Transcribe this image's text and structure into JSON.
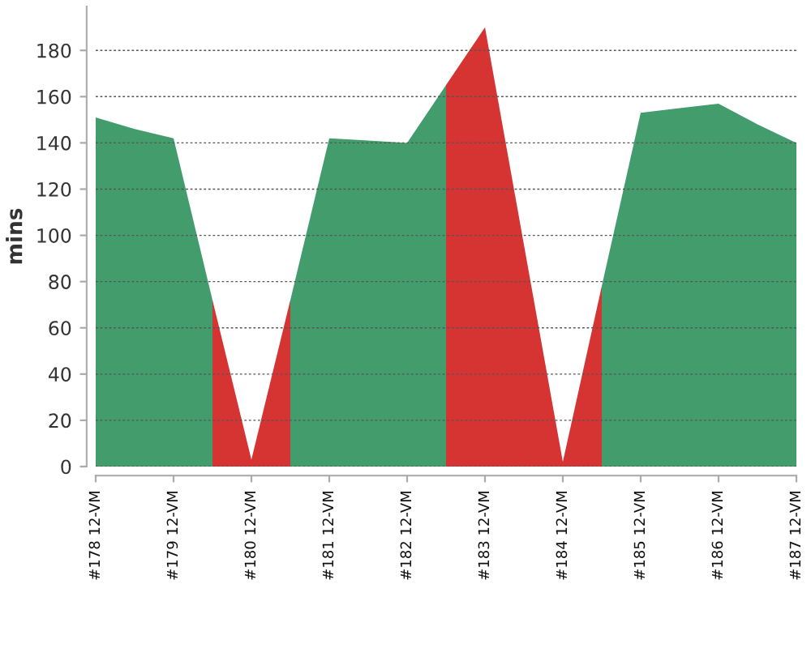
{
  "chart_data": {
    "type": "area",
    "ylabel": "mins",
    "categories": [
      "#178 12-VM",
      null,
      "#179 12-VM",
      null,
      "#180 12-VM",
      null,
      "#181 12-VM",
      null,
      "#182 12-VM",
      null,
      "#183 12-VM",
      null,
      "#184 12-VM",
      null,
      "#185 12-VM",
      null,
      "#186 12-VM",
      null,
      "#187 12-VM"
    ],
    "series": [
      {
        "color": "#429c6c",
        "values": [
          151,
          146,
          142,
          72,
          null,
          72,
          142,
          141,
          140,
          165,
          null,
          null,
          null,
          78,
          153,
          155,
          157,
          148,
          140
        ]
      },
      {
        "color": "#d63333",
        "values": [
          null,
          null,
          null,
          72,
          3,
          72,
          null,
          null,
          null,
          165,
          190,
          96,
          2,
          78,
          null,
          null,
          null,
          null,
          null
        ]
      }
    ],
    "ylim": [
      0,
      199
    ],
    "yticks": [
      0,
      20,
      40,
      60,
      80,
      100,
      120,
      140,
      160,
      180
    ],
    "grid": "y"
  }
}
